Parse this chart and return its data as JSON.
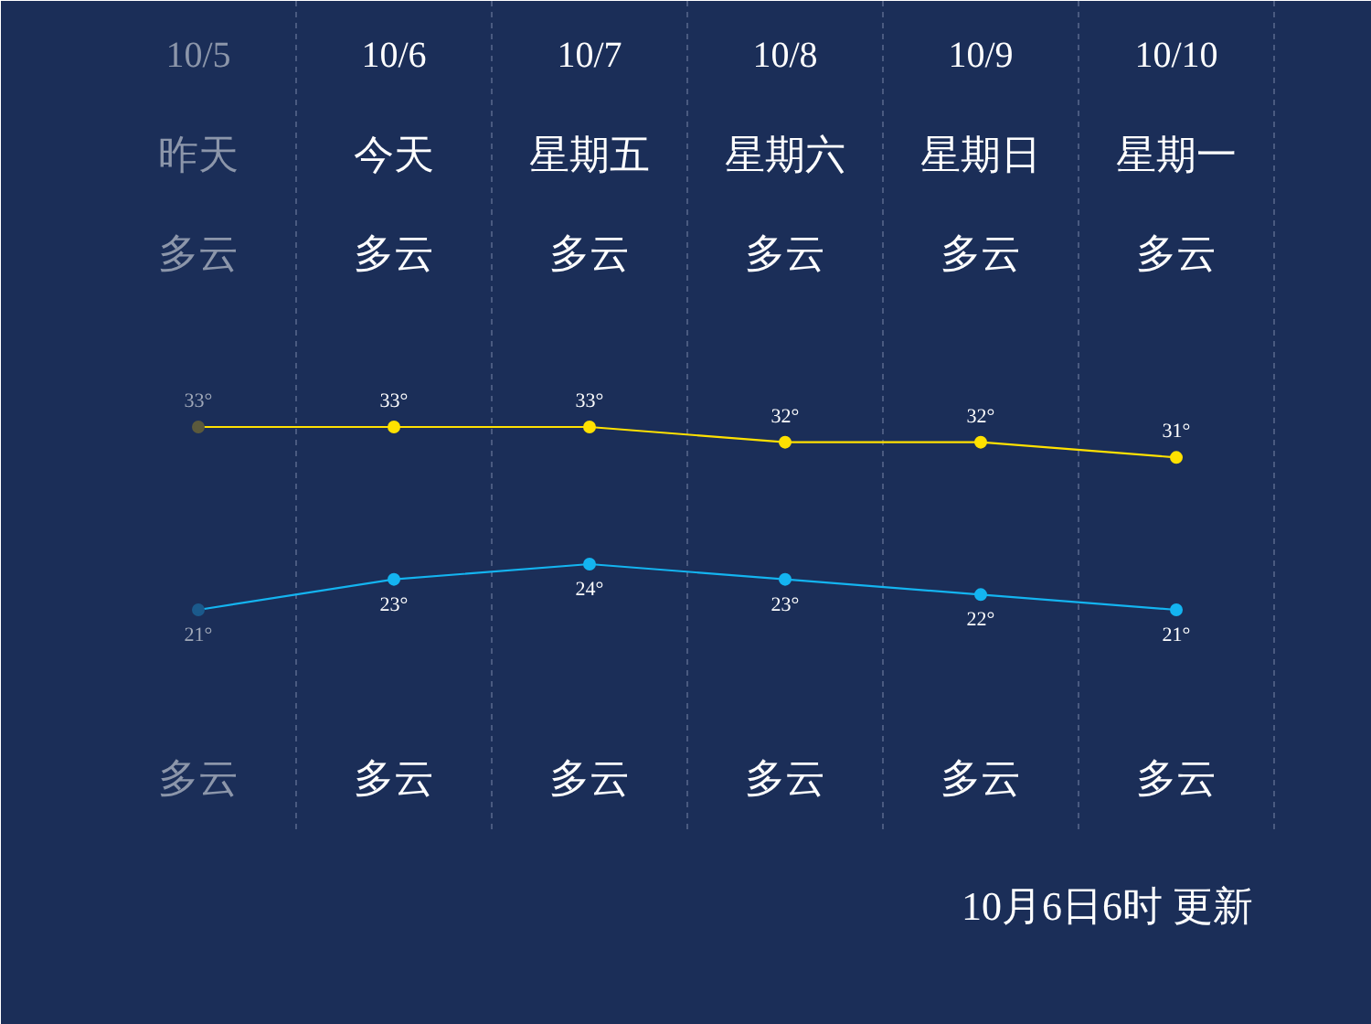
{
  "chart_data": {
    "type": "line",
    "categories": [
      "10/5",
      "10/6",
      "10/7",
      "10/8",
      "10/9",
      "10/10"
    ],
    "series": [
      {
        "color": "#ffe100",
        "colors": [
          "#5c5a3c",
          "#ffe100",
          "#ffe100",
          "#ffe100",
          "#ffe100",
          "#ffe100"
        ],
        "values": [
          33,
          33,
          33,
          32,
          32,
          31
        ],
        "value_labels": [
          "33°",
          "33°",
          "33°",
          "32°",
          "32°",
          "31°"
        ]
      },
      {
        "color": "#14b4f0",
        "colors": [
          "#1b5a8c",
          "#14b4f0",
          "#14b4f0",
          "#14b4f0",
          "#14b4f0",
          "#14b4f0"
        ],
        "values": [
          21,
          23,
          24,
          23,
          22,
          21
        ],
        "value_labels": [
          "21°",
          "23°",
          "24°",
          "23°",
          "22°",
          "21°"
        ]
      }
    ],
    "annotations": [
      "昨天",
      "今天",
      "星期五",
      "星期六",
      "星期日",
      "星期一",
      "多云",
      "多云",
      "多云",
      "多云",
      "多云",
      "多云",
      "多云",
      "多云",
      "多云",
      "多云",
      "多云",
      "多云",
      "10月6日6时 更新"
    ],
    "grid": "x",
    "marker": "circle",
    "line_style": "solid"
  }
}
